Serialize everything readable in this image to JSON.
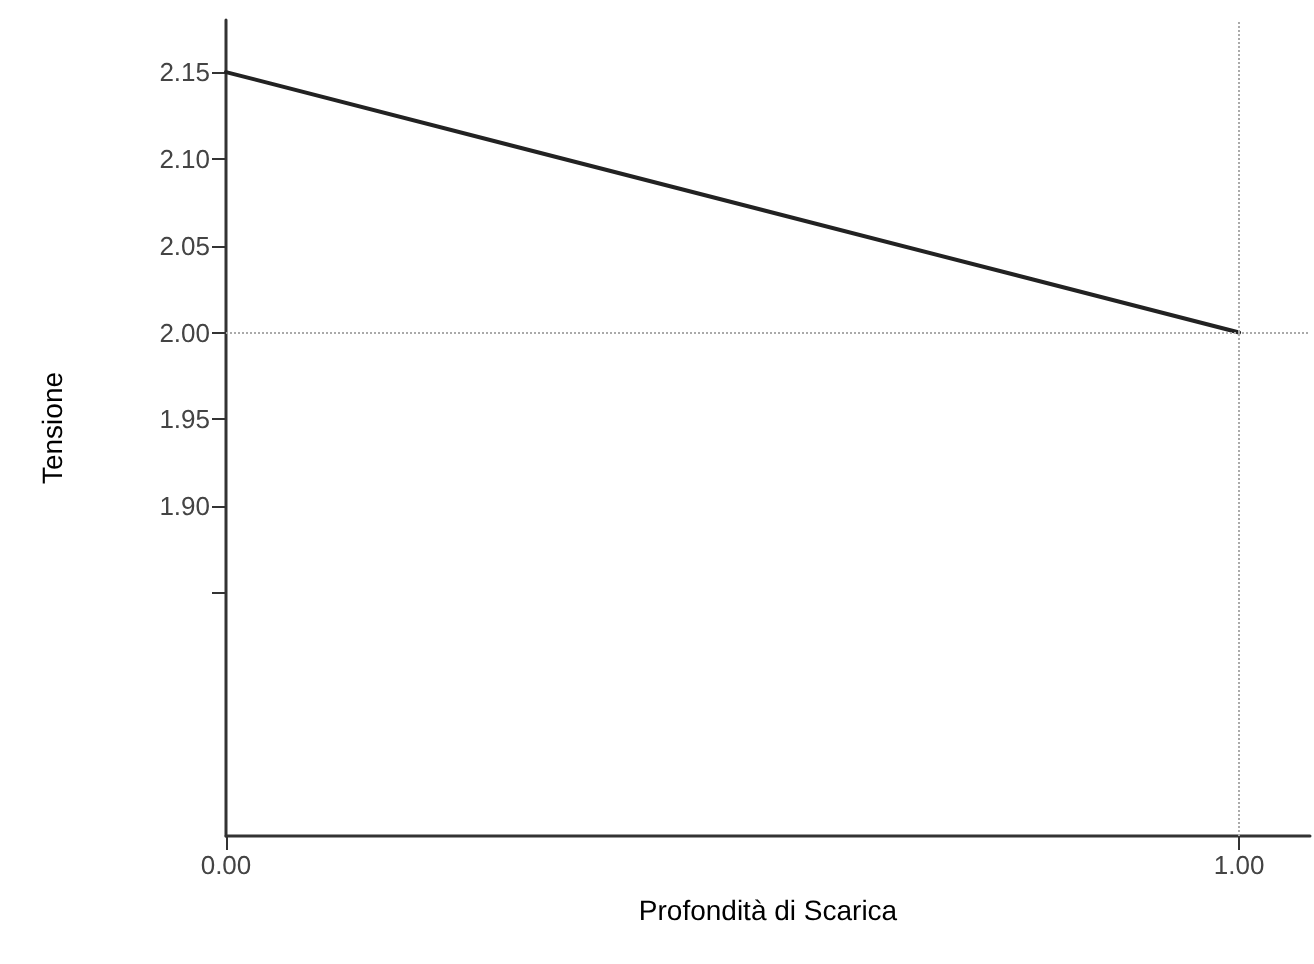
{
  "chart_data": {
    "type": "line",
    "xlabel": "Profondità di Scarica",
    "ylabel": "Tensione",
    "x": [
      0,
      1
    ],
    "series": [
      {
        "color": "#222222",
        "values": [
          2.15,
          2.0
        ]
      }
    ],
    "xlim": [
      0,
      1.07
    ],
    "xticks": [
      {
        "value": 0,
        "label": "0.00"
      },
      {
        "value": 1,
        "label": "1.00"
      }
    ],
    "ylim": [
      1.71,
      2.18
    ],
    "yticks": [
      {
        "value": 1.85,
        "label": null
      },
      {
        "value": 1.9,
        "label": "1.90"
      },
      {
        "value": 1.95,
        "label": "1.95"
      },
      {
        "value": 2,
        "label": "2.00"
      },
      {
        "value": 2.05,
        "label": "2.05"
      },
      {
        "value": 2.1,
        "label": "2.10"
      },
      {
        "value": 2.15,
        "label": "2.15"
      }
    ],
    "ref_lines": [
      {
        "axis": "y",
        "value": 2.0,
        "color": "#aaaaaa",
        "line_style": "dotted"
      },
      {
        "axis": "x",
        "value": 1.0,
        "color": "#aaaaaa",
        "line_style": "dotted"
      }
    ],
    "marker": "none",
    "line_style": "solid"
  }
}
